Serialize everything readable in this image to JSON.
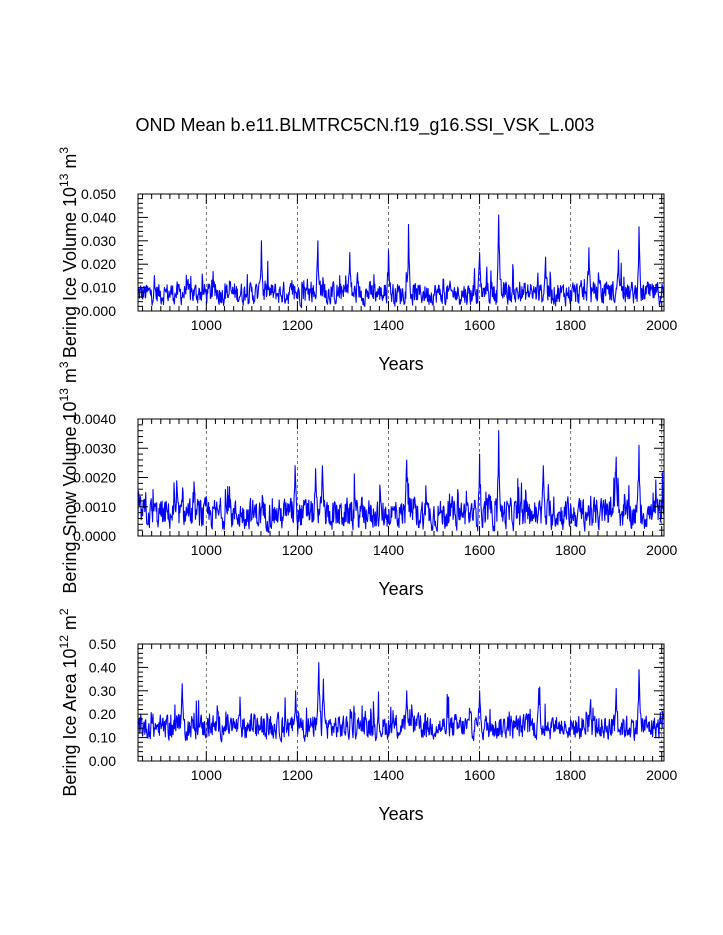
{
  "title": "OND Mean b.e11.BLMTRC5CN.f19_g16.SSI_VSK_L.003",
  "line_color": "#0000ff",
  "chart_data": [
    {
      "type": "line",
      "title": "OND Mean b.e11.BLMTRC5CN.f19_g16.SSI_VSK_L.003",
      "xlabel": "Years",
      "ylabel": "Bering Ice Volume 10",
      "ylabel_sup": "13",
      "ylabel_unit": "m",
      "ylabel_unit_sup": "3",
      "xlim": [
        850,
        2005
      ],
      "ylim": [
        0,
        0.05
      ],
      "xticks": [
        1000,
        1200,
        1400,
        1600,
        1800,
        2000
      ],
      "xtick_labels": [
        "1000",
        "1200",
        "1400",
        "1600",
        "1800",
        "2000"
      ],
      "yticks": [
        0,
        0.01,
        0.02,
        0.03,
        0.04,
        0.05
      ],
      "ytick_labels": [
        "0.000",
        "0.010",
        "0.020",
        "0.030",
        "0.040",
        "0.050"
      ],
      "grid": "vertical dashed at major x ticks",
      "series": [
        {
          "color": "#0000ff",
          "base": 0.0075,
          "noise": 0.0042,
          "floor": 0.0004,
          "events": [
            [
              1121,
              0.03
            ],
            [
              1245,
              0.03
            ],
            [
              1315,
              0.025
            ],
            [
              1400,
              0.026
            ],
            [
              1444,
              0.037
            ],
            [
              1600,
              0.025
            ],
            [
              1642,
              0.041
            ],
            [
              1745,
              0.023
            ],
            [
              1840,
              0.027
            ],
            [
              1905,
              0.026
            ],
            [
              1950,
              0.036
            ]
          ]
        }
      ]
    },
    {
      "type": "line",
      "xlabel": "Years",
      "ylabel": "Bering Snow Volume 10",
      "ylabel_sup": "13",
      "ylabel_unit": "m",
      "ylabel_unit_sup": "3",
      "xlim": [
        850,
        2005
      ],
      "ylim": [
        0,
        0.004
      ],
      "xticks": [
        1000,
        1200,
        1400,
        1600,
        1800,
        2000
      ],
      "xtick_labels": [
        "1000",
        "1200",
        "1400",
        "1600",
        "1800",
        "2000"
      ],
      "yticks": [
        0,
        0.001,
        0.002,
        0.003,
        0.004
      ],
      "ytick_labels": [
        "0.0000",
        "0.0010",
        "0.0020",
        "0.0030",
        "0.0040"
      ],
      "grid": "vertical dashed at major x ticks",
      "series": [
        {
          "color": "#0000ff",
          "base": 0.00075,
          "noise": 0.00045,
          "floor": 3e-05,
          "events": [
            [
              1195,
              0.0024
            ],
            [
              1240,
              0.0023
            ],
            [
              1255,
              0.0024
            ],
            [
              1440,
              0.0026
            ],
            [
              1600,
              0.0028
            ],
            [
              1642,
              0.0036
            ],
            [
              1740,
              0.0024
            ],
            [
              1900,
              0.0027
            ],
            [
              1950,
              0.0031
            ]
          ]
        }
      ]
    },
    {
      "type": "line",
      "xlabel": "Years",
      "ylabel": "Bering Ice Area 10",
      "ylabel_sup": "12",
      "ylabel_unit": "m",
      "ylabel_unit_sup": "2",
      "xlim": [
        850,
        2005
      ],
      "ylim": [
        0,
        0.5
      ],
      "xticks": [
        1000,
        1200,
        1400,
        1600,
        1800,
        2000
      ],
      "xtick_labels": [
        "1000",
        "1200",
        "1400",
        "1600",
        "1800",
        "2000"
      ],
      "yticks": [
        0,
        0.1,
        0.2,
        0.3,
        0.4,
        0.5
      ],
      "ytick_labels": [
        "0.00",
        "0.10",
        "0.20",
        "0.30",
        "0.40",
        "0.50"
      ],
      "grid": "vertical dashed at major x ticks",
      "series": [
        {
          "color": "#0000ff",
          "base": 0.145,
          "noise": 0.045,
          "floor": 0.03,
          "events": [
            [
              947,
              0.33
            ],
            [
              1196,
              0.3
            ],
            [
              1247,
              0.42
            ],
            [
              1257,
              0.35
            ],
            [
              1440,
              0.3
            ],
            [
              1600,
              0.3
            ],
            [
              1730,
              0.31
            ],
            [
              1900,
              0.31
            ],
            [
              1950,
              0.39
            ]
          ]
        }
      ]
    }
  ]
}
